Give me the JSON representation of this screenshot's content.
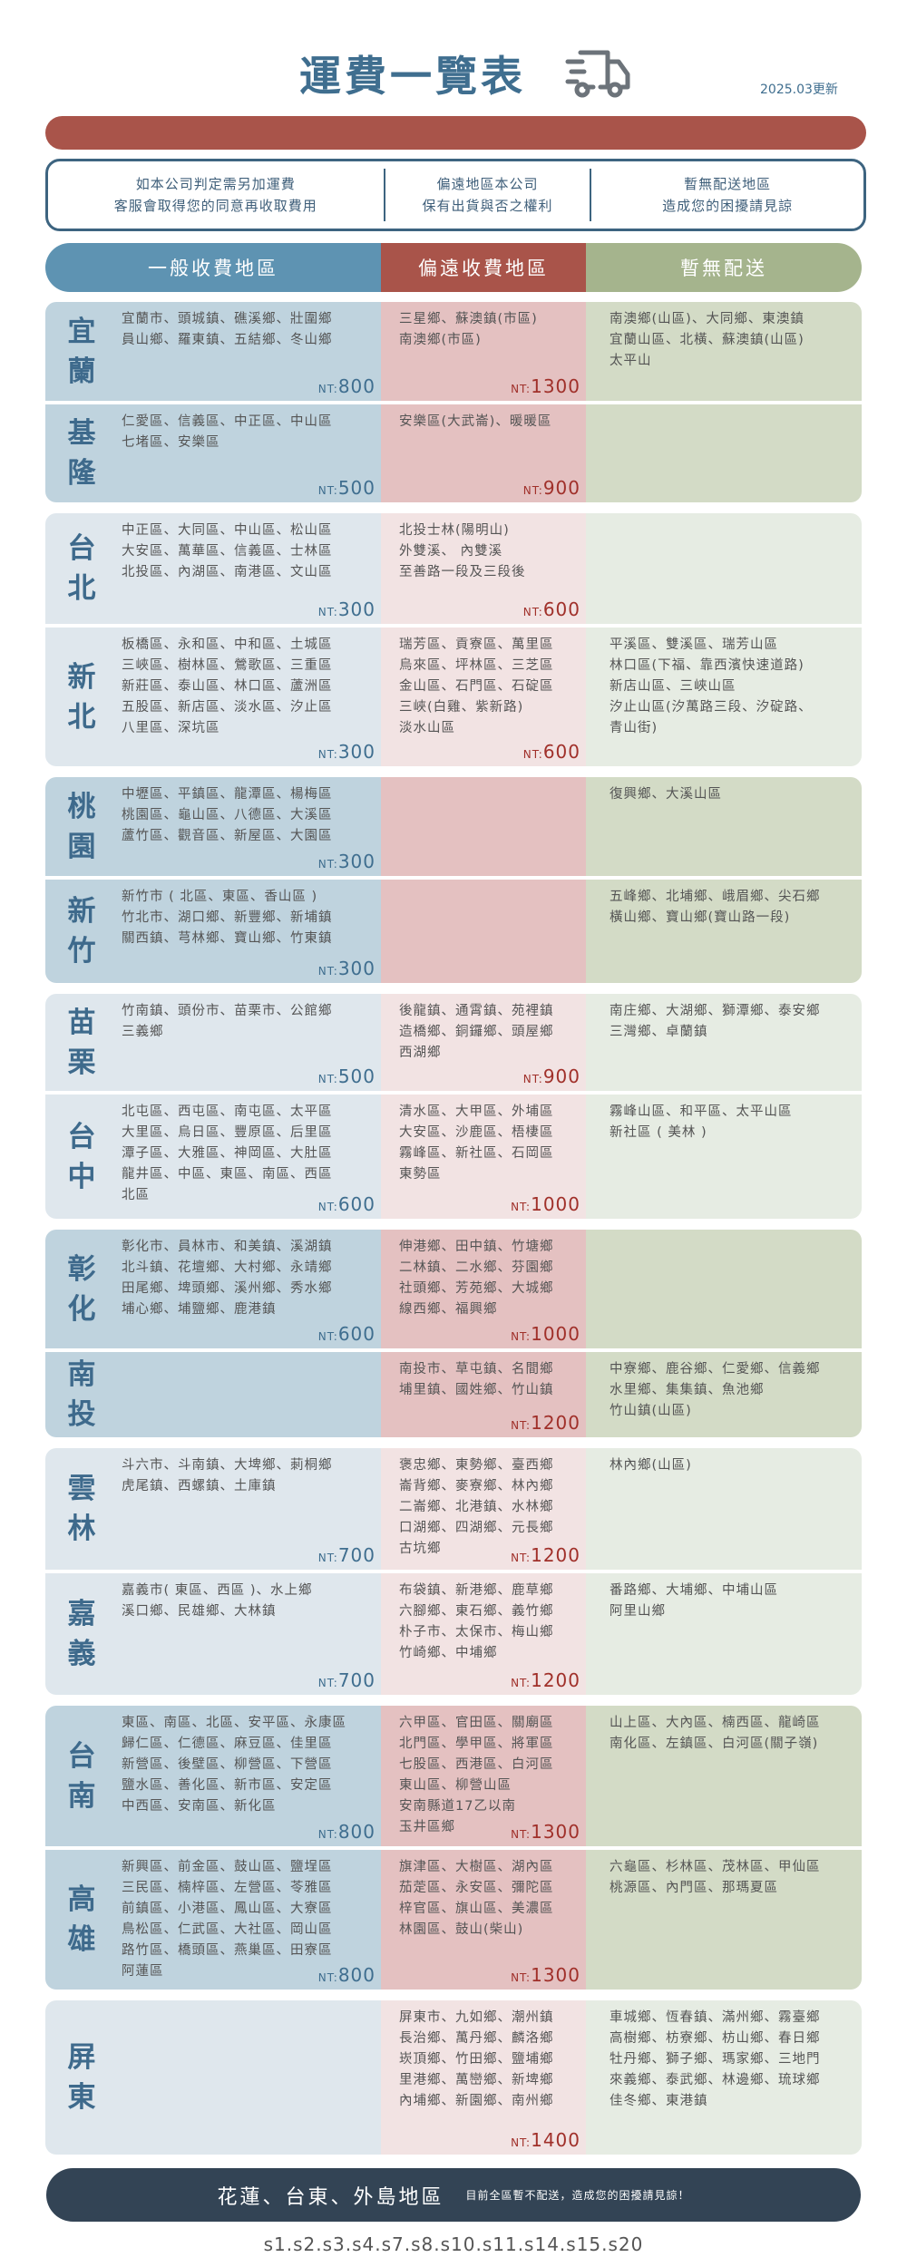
{
  "header": {
    "title": "運費一覽表",
    "truck_icon": "delivery-truck-icon",
    "updated": "2025.03更新"
  },
  "info": [
    {
      "lines": [
        "如本公司判定需另加運費",
        "客服會取得您的同意再收取費用"
      ]
    },
    {
      "lines": [
        "偏遠地區本公司",
        "保有出貨與否之權利"
      ]
    },
    {
      "lines": [
        "暫無配送地區",
        "造成您的困擾請見諒"
      ]
    }
  ],
  "columns": {
    "normal": "一般收費地區",
    "remote": "偏遠收費地區",
    "none": "暫無配送"
  },
  "colors": {
    "title": "#3f6e8f",
    "red": "#a9544a",
    "blue": "#5e93b2",
    "green": "#a5b48d",
    "navy": "#334455"
  },
  "groups": [
    {
      "shade": "dark",
      "rows": [
        {
          "name": "宜蘭",
          "normal": [
            "宜蘭市、頭城鎮、礁溪鄉、壯圍鄉",
            "員山鄉、羅東鎮、五結鄉、冬山鄉"
          ],
          "normal_price": "800",
          "remote": [
            "三星鄉、蘇澳鎮(市區)",
            "南澳鄉(市區)"
          ],
          "remote_price": "1300",
          "none": [
            "南澳鄉(山區)、大同鄉、東澳鎮",
            "宜蘭山區、北橫、蘇澳鎮(山區)",
            "太平山"
          ],
          "h": 109
        },
        {
          "name": "基隆",
          "normal": [
            "仁愛區、信義區、中正區、中山區",
            "七堵區、安樂區"
          ],
          "normal_price": "500",
          "remote": [
            "安樂區(大武崙)、暖暖區"
          ],
          "remote_price": "900",
          "none": [],
          "h": 108
        }
      ]
    },
    {
      "shade": "light",
      "rows": [
        {
          "name": "台北",
          "normal": [
            "中正區、大同區、中山區、松山區",
            "大安區、萬華區、信義區、士林區",
            "北投區、內湖區、南港區、文山區"
          ],
          "normal_price": "300",
          "remote": [
            "北投士林(陽明山)",
            "外雙溪、 內雙溪",
            "至善路一段及三段後"
          ],
          "remote_price": "600",
          "none": [],
          "h": 122
        },
        {
          "name": "新北",
          "normal": [
            "板橋區、永和區、中和區、土城區",
            "三峽區、樹林區、鶯歌區、三重區",
            "新莊區、泰山區、林口區、蘆洲區",
            "五股區、新店區、淡水區、汐止區",
            "八里區、深坑區"
          ],
          "normal_price": "300",
          "remote": [
            "瑞芳區、貢寮區、萬里區",
            "烏來區、坪林區、三芝區",
            "金山區、石門區、石碇區",
            "三峽(白雞、紫新路)",
            "淡水山區"
          ],
          "remote_price": "600",
          "none": [
            "平溪區、雙溪區、瑞芳山區",
            "林口區(下福、靠西濱快速道路)",
            "新店山區、三峽山區",
            "汐止山區(汐萬路三段、汐碇路、",
            "青山街)"
          ],
          "h": 153
        }
      ]
    },
    {
      "shade": "dark",
      "rows": [
        {
          "name": "桃園",
          "normal": [
            "中壢區、平鎮區、龍潭區、楊梅區",
            "桃園區、龜山區、八德區、大溪區",
            "蘆竹區、觀音區、新屋區、大園區"
          ],
          "normal_price": "300",
          "remote": [],
          "remote_price": "",
          "none": [
            "復興鄉、大溪山區"
          ],
          "h": 109
        },
        {
          "name": "新竹",
          "normal": [
            "新竹市 ( 北區、東區、香山區 )",
            "竹北市、湖口鄉、新豐鄉、新埔鎮",
            "關西鎮、芎林鄉、寶山鄉、竹東鎮"
          ],
          "normal_price": "300",
          "remote": [],
          "remote_price": "",
          "none": [
            "五峰鄉、北埔鄉、峨眉鄉、尖石鄉",
            "橫山鄉、寶山鄉(寶山路一段)"
          ],
          "h": 114
        }
      ]
    },
    {
      "shade": "light",
      "rows": [
        {
          "name": "苗栗",
          "normal": [
            "竹南鎮、頭份市、苗栗市、公館鄉",
            "三義鄉"
          ],
          "normal_price": "500",
          "remote": [
            "後龍鎮、通霄鎮、苑裡鎮",
            "造橋鄉、銅鑼鄉、頭屋鄉",
            "西湖鄉"
          ],
          "remote_price": "900",
          "none": [
            "南庄鄉、大湖鄉、獅潭鄉、泰安鄉",
            "三灣鄉、卓蘭鎮"
          ],
          "h": 107
        },
        {
          "name": "台中",
          "normal": [
            "北屯區、西屯區、南屯區、太平區",
            "大里區、烏日區、豐原區、后里區",
            "潭子區、大雅區、神岡區、大肚區",
            "龍井區、中區、東區、南區、西區",
            "北區"
          ],
          "normal_price": "600",
          "remote": [
            "清水區、大甲區、外埔區",
            "大安區、沙鹿區、梧棲區",
            "霧峰區、新社區、石岡區",
            "東勢區"
          ],
          "remote_price": "1000",
          "none": [
            "霧峰山區、和平區、太平山區",
            "新社區 ( 美林 )"
          ],
          "h": 137
        }
      ]
    },
    {
      "shade": "dark",
      "rows": [
        {
          "name": "彰化",
          "normal": [
            "彰化市、員林市、和美鎮、溪湖鎮",
            "北斗鎮、花壇鄉、大村鄉、永靖鄉",
            "田尾鄉、埤頭鄉、溪州鄉、秀水鄉",
            "埔心鄉、埔鹽鄉、鹿港鎮"
          ],
          "normal_price": "600",
          "remote": [
            "伸港鄉、田中鎮、竹塘鄉",
            "二林鎮、二水鄉、芬園鄉",
            "社頭鄉、芳苑鄉、大城鄉",
            "線西鄉、福興鄉"
          ],
          "remote_price": "1000",
          "none": [],
          "h": 131
        },
        {
          "name": "南投",
          "normal": [],
          "normal_price": "",
          "remote": [
            "南投市、草屯鎮、名間鄉",
            "埔里鎮、國姓鄉、竹山鎮"
          ],
          "remote_price": "1200",
          "none": [
            "中寮鄉、鹿谷鄉、仁愛鄉、信義鄉",
            "水里鄉、集集鎮、魚池鄉",
            "竹山鎮(山區)"
          ],
          "h": 94
        }
      ]
    },
    {
      "shade": "light",
      "rows": [
        {
          "name": "雲林",
          "normal": [
            "斗六市、斗南鎮、大埤鄉、莿桐鄉",
            "虎尾鎮、西螺鎮、土庫鎮"
          ],
          "normal_price": "700",
          "remote": [
            "褒忠鄉、東勢鄉、臺西鄉",
            "崙背鄉、麥寮鄉、林內鄉",
            "二崙鄉、北港鎮、水林鄉",
            "口湖鄉、四湖鄉、元長鄉",
            "古坑鄉"
          ],
          "remote_price": "1200",
          "none": [
            "林內鄉(山區)"
          ],
          "h": 134
        },
        {
          "name": "嘉義",
          "normal": [
            "嘉義市( 東區、西區 )、水上鄉",
            "溪口鄉、民雄鄉、大林鎮"
          ],
          "normal_price": "700",
          "remote": [
            "布袋鎮、新港鄉、鹿草鄉",
            "六腳鄉、東石鄉、義竹鄉",
            "朴子市、太保市、梅山鄉",
            "竹崎鄉、中埔鄉"
          ],
          "remote_price": "1200",
          "none": [
            "番路鄉、大埔鄉、中埔山區",
            "阿里山鄉"
          ],
          "h": 134
        }
      ]
    },
    {
      "shade": "dark",
      "rows": [
        {
          "name": "台南",
          "normal": [
            "東區、南區、北區、安平區、永康區",
            "歸仁區、仁德區、麻豆區、佳里區",
            "新營區、後壁區、柳營區、下營區",
            "鹽水區、善化區、新市區、安定區",
            "中西區、安南區、新化區"
          ],
          "normal_price": "800",
          "remote": [
            "六甲區、官田區、關廟區",
            "北門區、學甲區、將軍區",
            "七股區、西港區、白河區",
            "東山區、柳營山區",
            "安南縣道17乙以南",
            "玉井區鄉"
          ],
          "remote_price": "1300",
          "none": [
            "山上區、大內區、楠西區、龍崎區",
            "南化區、左鎮區、白河區(關子嶺)"
          ],
          "h": 155
        },
        {
          "name": "高雄",
          "normal": [
            "新興區、前金區、鼓山區、鹽埕區",
            "三民區、楠梓區、左營區、苓雅區",
            "前鎮區、小港區、鳳山區、大寮區",
            "鳥松區、仁武區、大社區、岡山區",
            "路竹區、橋頭區、燕巢區、田寮區",
            "阿蓮區"
          ],
          "normal_price": "800",
          "remote": [
            "旗津區、大樹區、湖內區",
            "茄萣區、永安區、彌陀區",
            "梓官區、旗山區、美濃區",
            "林園區、鼓山(柴山)"
          ],
          "remote_price": "1300",
          "none": [
            "六龜區、杉林區、茂林區、甲仙區",
            "桃源區、內門區、那瑪夏區"
          ],
          "h": 154
        }
      ]
    },
    {
      "shade": "light",
      "rows": [
        {
          "name": "屏東",
          "normal": [],
          "normal_price": "",
          "remote": [
            "屏東市、九如鄉、潮州鎮",
            "長治鄉、萬丹鄉、麟洛鄉",
            "崁頂鄉、竹田鄉、鹽埔鄉",
            "里港鄉、萬巒鄉、新埤鄉",
            "內埔鄉、新園鄉、南州鄉"
          ],
          "remote_price": "1400",
          "none": [
            "車城鄉、恆春鎮、滿州鄉、霧臺鄉",
            "高樹鄉、枋寮鄉、枋山鄉、春日鄉",
            "牡丹鄉、獅子鄉、瑪家鄉、三地門",
            "來義鄉、泰武鄉、林邊鄉、琉球鄉",
            "佳冬鄉、東港鎮"
          ],
          "h": 170
        }
      ]
    }
  ],
  "price_prefix": "NT:",
  "footer": {
    "regions": "花蓮、台東、外島地區",
    "note": "目前全區暫不配送，造成您的困擾請見諒！"
  },
  "codes": "s1.s2.s3.s4.s7.s8.s10.s11.s14.s15.s20"
}
